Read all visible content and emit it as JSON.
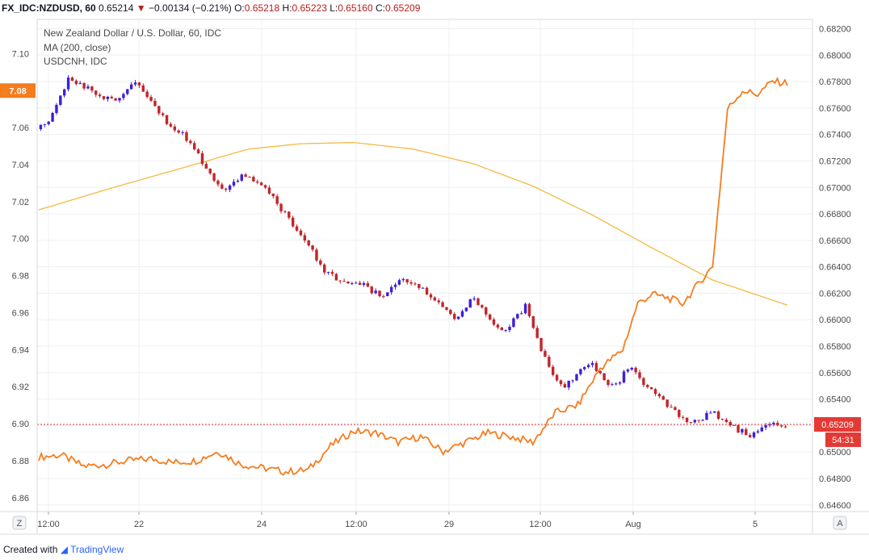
{
  "header": {
    "symbol": "FX_IDC:NZDUSD, 60",
    "last": "0.65214",
    "arrow": "▼",
    "change": "−0.00134 (−0.21%)",
    "o_label": "O:",
    "o": "0.65218",
    "h_label": "H:",
    "h": "0.65223",
    "l_label": "L:",
    "l": "0.65160",
    "c_label": "C:",
    "c": "0.65209"
  },
  "legend": {
    "main": "New Zealand Dollar / U.S. Dollar, 60, IDC",
    "ma": "MA (200, close)",
    "overlay": "USDCNH, IDC"
  },
  "footer": {
    "prefix": "Created with",
    "brand": "TradingView"
  },
  "controls": {
    "left_button": "Z",
    "right_button": "A"
  },
  "chart_data": {
    "type": "candlestick",
    "x_ticks": [
      "12:00",
      "22",
      "24",
      "12:00",
      "29",
      "12:00",
      "Aug",
      "5"
    ],
    "right_axis": {
      "ticks": [
        "0.68200",
        "0.68000",
        "0.67800",
        "0.67600",
        "0.67400",
        "0.67200",
        "0.67000",
        "0.66800",
        "0.66600",
        "0.66400",
        "0.66200",
        "0.66000",
        "0.65800",
        "0.65600",
        "0.65400",
        "0.65200",
        "0.65000",
        "0.64800",
        "0.64600"
      ],
      "range": [
        0.6455,
        0.6827
      ]
    },
    "left_axis": {
      "ticks": [
        "7.10",
        "7.08",
        "7.06",
        "7.04",
        "7.02",
        "7.00",
        "6.98",
        "6.96",
        "6.94",
        "6.92",
        "6.90",
        "6.88",
        "6.86"
      ],
      "range": [
        6.8525,
        7.1185
      ]
    },
    "price_label": "0.65209",
    "countdown": "54:31",
    "left_highlight": "7.08",
    "colors": {
      "up": "#3f1fd6",
      "down": "#c0262b",
      "ma": "#f5b942",
      "overlay": "#f57c1f",
      "price_line": "#d32f2f",
      "grid": "#eef0f3"
    },
    "series": [
      {
        "name": "NZDUSD",
        "axis": "right",
        "x": [
          0,
          0.02,
          0.04,
          0.07,
          0.1,
          0.13,
          0.17,
          0.2,
          0.23,
          0.25,
          0.27,
          0.3,
          0.33,
          0.36,
          0.38,
          0.41,
          0.43,
          0.46,
          0.48,
          0.5,
          0.53,
          0.56,
          0.58,
          0.6,
          0.62,
          0.65,
          0.68,
          0.7,
          0.72,
          0.74,
          0.755,
          0.77,
          0.79,
          0.81,
          0.84,
          0.87,
          0.9,
          0.93,
          0.95,
          0.97,
          1
        ],
        "values": [
          0.6744,
          0.6755,
          0.6783,
          0.6773,
          0.6765,
          0.6782,
          0.675,
          0.6736,
          0.671,
          0.6697,
          0.671,
          0.67,
          0.668,
          0.6656,
          0.6638,
          0.6627,
          0.6627,
          0.6617,
          0.663,
          0.6628,
          0.6615,
          0.66,
          0.6618,
          0.66,
          0.659,
          0.661,
          0.6565,
          0.6549,
          0.656,
          0.6568,
          0.6553,
          0.655,
          0.6565,
          0.655,
          0.6535,
          0.652,
          0.653,
          0.6518,
          0.6512,
          0.652,
          0.6521
        ]
      },
      {
        "name": "MA (200, close)",
        "axis": "right",
        "x": [
          0,
          0.1,
          0.2,
          0.28,
          0.35,
          0.42,
          0.5,
          0.58,
          0.66,
          0.74,
          0.82,
          0.9,
          1
        ],
        "values": [
          0.6683,
          0.67,
          0.6716,
          0.6729,
          0.6733,
          0.6734,
          0.6729,
          0.6718,
          0.6701,
          0.6679,
          0.6654,
          0.663,
          0.6611
        ]
      },
      {
        "name": "USDCNH",
        "axis": "left",
        "x": [
          0,
          0.03,
          0.06,
          0.09,
          0.12,
          0.15,
          0.18,
          0.21,
          0.24,
          0.27,
          0.3,
          0.33,
          0.36,
          0.39,
          0.42,
          0.45,
          0.48,
          0.51,
          0.54,
          0.57,
          0.6,
          0.63,
          0.66,
          0.69,
          0.72,
          0.75,
          0.78,
          0.8,
          0.82,
          0.84,
          0.86,
          0.88,
          0.9,
          0.92,
          0.94,
          0.96,
          0.98,
          1
        ],
        "values": [
          6.882,
          6.883,
          6.877,
          6.878,
          6.88,
          6.881,
          6.879,
          6.88,
          6.885,
          6.878,
          6.876,
          6.874,
          6.875,
          6.888,
          6.896,
          6.895,
          6.89,
          6.893,
          6.885,
          6.89,
          6.895,
          6.893,
          6.89,
          6.906,
          6.91,
          6.93,
          6.94,
          6.965,
          6.97,
          6.968,
          6.965,
          6.975,
          6.985,
          7.07,
          7.08,
          7.078,
          7.085,
          7.084
        ]
      }
    ]
  }
}
